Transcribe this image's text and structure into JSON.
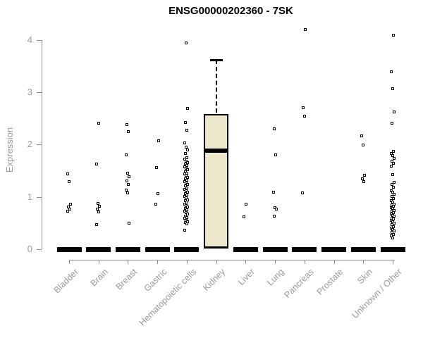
{
  "title": "ENSG00000202360 - 7SK",
  "y_axis": {
    "label": "Expression",
    "ticks": [
      "0",
      "1",
      "2",
      "3",
      "4"
    ]
  },
  "colors": {
    "background": "#ffffff",
    "box_fill": "#EDE7CC",
    "box_stroke": "#000000",
    "point": "#000000",
    "axis_line": "#8c8c8c",
    "tick_label": "#9a9a9a",
    "axis_label": "#9a9a9a",
    "title": "#000000"
  },
  "chart_data": {
    "type": "boxplot",
    "title": "ENSG00000202360 - 7SK",
    "xlabel": "",
    "ylabel": "Expression",
    "ylim": [
      0,
      4.3
    ],
    "y_ticks": [
      0,
      1,
      2,
      3,
      4
    ],
    "grid": false,
    "legend": null,
    "box_fill": "#EDE7CC",
    "categories": [
      "Bladder",
      "Brain",
      "Breast",
      "Gastric",
      "Hematopoietic cells",
      "Kidney",
      "Liver",
      "Lung",
      "Pancreas",
      "Prostate",
      "Skin",
      "Unknown / Other"
    ],
    "series": [
      {
        "category": "Bladder",
        "box": {
          "low": 0,
          "q1": 0,
          "median": 0,
          "q3": 0,
          "high": 0
        },
        "points": [
          1.44,
          1.28,
          0.86,
          0.8,
          0.76,
          0.72
        ]
      },
      {
        "category": "Brain",
        "box": {
          "low": 0,
          "q1": 0,
          "median": 0,
          "q3": 0,
          "high": 0
        },
        "points": [
          2.4,
          1.62,
          0.87,
          0.81,
          0.76,
          0.71,
          0.47
        ]
      },
      {
        "category": "Breast",
        "box": {
          "low": 0,
          "q1": 0,
          "median": 0,
          "q3": 0,
          "high": 0
        },
        "points": [
          2.37,
          2.24,
          1.8,
          1.45,
          1.38,
          1.3,
          1.23,
          1.12,
          1.07,
          0.49
        ]
      },
      {
        "category": "Gastric",
        "box": {
          "low": 0,
          "q1": 0,
          "median": 0,
          "q3": 0,
          "high": 0
        },
        "points": [
          2.07,
          1.55,
          1.06,
          0.85
        ]
      },
      {
        "category": "Hematopoietic cells",
        "box": {
          "low": 0,
          "q1": 0,
          "median": 0,
          "q3": 0,
          "high": 0
        },
        "points": [
          3.94,
          2.68,
          2.41,
          2.27,
          2.02,
          1.95,
          1.89,
          1.82,
          1.74,
          1.71,
          1.68,
          1.65,
          1.62,
          1.6,
          1.57,
          1.54,
          1.51,
          1.48,
          1.45,
          1.43,
          1.4,
          1.37,
          1.34,
          1.31,
          1.28,
          1.26,
          1.23,
          1.2,
          1.17,
          1.14,
          1.11,
          1.09,
          1.06,
          1.03,
          1.0,
          0.97,
          0.94,
          0.92,
          0.89,
          0.86,
          0.83,
          0.8,
          0.77,
          0.75,
          0.72,
          0.69,
          0.66,
          0.63,
          0.6,
          0.58,
          0.55,
          0.52,
          0.5,
          0.48,
          0.36
        ]
      },
      {
        "category": "Kidney",
        "box": {
          "low": 0,
          "q1": 0.01,
          "median": 1.88,
          "q3": 2.58,
          "high": 3.62
        },
        "points": []
      },
      {
        "category": "Liver",
        "box": {
          "low": 0,
          "q1": 0,
          "median": 0,
          "q3": 0,
          "high": 0
        },
        "points": [
          0.85,
          0.61
        ]
      },
      {
        "category": "Lung",
        "box": {
          "low": 0,
          "q1": 0,
          "median": 0,
          "q3": 0,
          "high": 0
        },
        "points": [
          2.3,
          1.8,
          1.09,
          0.79,
          0.76,
          0.62
        ]
      },
      {
        "category": "Pancreas",
        "box": {
          "low": 0,
          "q1": 0,
          "median": 0,
          "q3": 0,
          "high": 0
        },
        "points": [
          4.19,
          2.7,
          2.54,
          1.07
        ]
      },
      {
        "category": "Prostate",
        "box": {
          "low": 0,
          "q1": 0,
          "median": 0,
          "q3": 0,
          "high": 0
        },
        "points": []
      },
      {
        "category": "Skin",
        "box": {
          "low": 0,
          "q1": 0,
          "median": 0,
          "q3": 0,
          "high": 0
        },
        "points": [
          2.16,
          1.98,
          1.41,
          1.34,
          1.28
        ]
      },
      {
        "category": "Unknown / Other",
        "box": {
          "low": 0,
          "q1": 0,
          "median": 0,
          "q3": 0,
          "high": 0
        },
        "points": [
          4.09,
          3.38,
          3.06,
          2.62,
          2.4,
          1.87,
          1.82,
          1.78,
          1.73,
          1.68,
          1.63,
          1.58,
          1.42,
          1.27,
          1.23,
          1.18,
          1.11,
          1.08,
          1.04,
          1.0,
          0.96,
          0.92,
          0.89,
          0.86,
          0.84,
          0.82,
          0.79,
          0.77,
          0.74,
          0.72,
          0.69,
          0.67,
          0.64,
          0.62,
          0.59,
          0.57,
          0.55,
          0.52,
          0.49,
          0.46,
          0.43,
          0.4,
          0.37,
          0.34,
          0.31,
          0.28,
          0.25,
          0.21
        ]
      }
    ]
  }
}
